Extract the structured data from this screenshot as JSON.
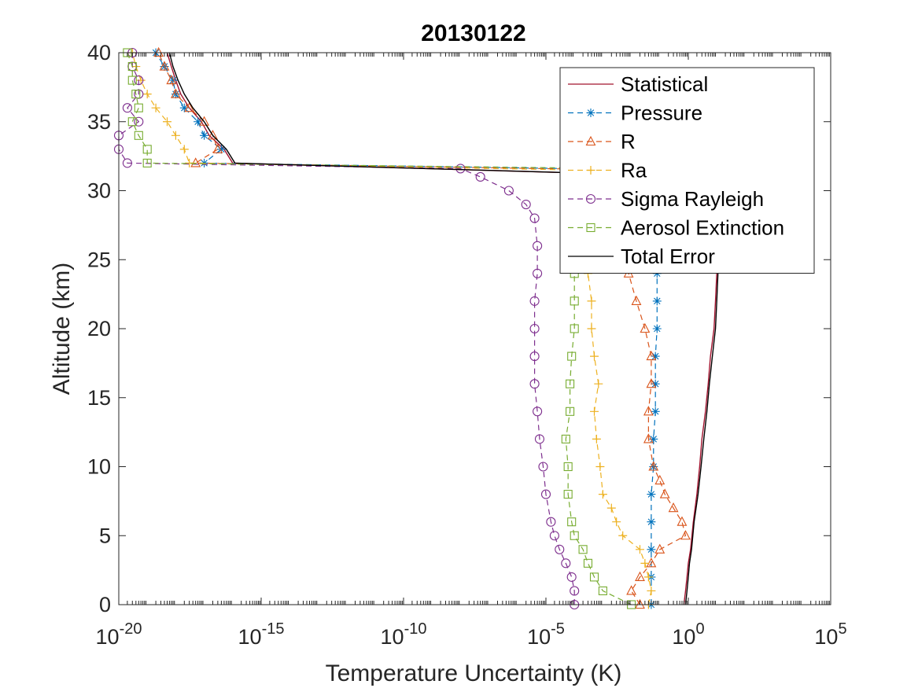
{
  "chart_data": {
    "type": "line",
    "title": "20130122",
    "xlabel": "Temperature Uncertainty (K)",
    "ylabel": "Altitude (km)",
    "xscale": "log",
    "xlim": [
      1e-20,
      100000.0
    ],
    "ylim": [
      0,
      40
    ],
    "grid": false,
    "legend_position": "top-right",
    "x_ticks": [
      {
        "base": "10",
        "exp": "-20",
        "value": 1e-20
      },
      {
        "base": "10",
        "exp": "-15",
        "value": 1e-15
      },
      {
        "base": "10",
        "exp": "-10",
        "value": 1e-10
      },
      {
        "base": "10",
        "exp": "-5",
        "value": 1e-05
      },
      {
        "base": "10",
        "exp": "0",
        "value": 1
      },
      {
        "base": "10",
        "exp": "5",
        "value": 100000.0
      }
    ],
    "y_ticks": [
      "0",
      "5",
      "10",
      "15",
      "20",
      "25",
      "30",
      "35",
      "40"
    ],
    "series": [
      {
        "name": "Statistical",
        "color": "#A2142F",
        "line": "solid",
        "marker": "none",
        "points": [
          [
            0.7,
            0
          ],
          [
            0.8,
            1
          ],
          [
            0.9,
            2
          ],
          [
            1.0,
            3
          ],
          [
            1.2,
            4
          ],
          [
            1.5,
            6
          ],
          [
            2,
            8
          ],
          [
            2.5,
            10
          ],
          [
            3,
            12
          ],
          [
            4,
            14
          ],
          [
            5,
            16
          ],
          [
            6,
            18
          ],
          [
            8,
            20
          ],
          [
            9,
            22
          ],
          [
            10,
            24
          ],
          [
            10,
            26
          ],
          [
            9,
            28
          ],
          [
            9,
            30
          ],
          [
            8,
            31
          ],
          [
            1e-16,
            32
          ],
          [
            5e-17,
            33
          ],
          [
            1.5e-17,
            34
          ],
          [
            8e-18,
            35
          ],
          [
            3e-18,
            36
          ],
          [
            1.5e-18,
            37
          ],
          [
            1e-18,
            38
          ],
          [
            7e-19,
            39
          ],
          [
            5e-19,
            40
          ]
        ]
      },
      {
        "name": "Pressure",
        "color": "#0072BD",
        "line": "dashed",
        "marker": "asterisk",
        "points": [
          [
            0.05,
            0
          ],
          [
            0.05,
            2
          ],
          [
            0.05,
            4
          ],
          [
            0.05,
            6
          ],
          [
            0.05,
            8
          ],
          [
            0.06,
            10
          ],
          [
            0.06,
            12
          ],
          [
            0.07,
            14
          ],
          [
            0.07,
            16
          ],
          [
            0.07,
            18
          ],
          [
            0.08,
            20
          ],
          [
            0.08,
            22
          ],
          [
            0.08,
            24
          ],
          [
            0.09,
            26
          ],
          [
            0.09,
            28
          ],
          [
            0.1,
            30
          ],
          [
            0.1,
            31.5
          ],
          [
            1e-17,
            32
          ],
          [
            4e-17,
            33
          ],
          [
            1e-17,
            34
          ],
          [
            6e-18,
            35
          ],
          [
            2e-18,
            36
          ],
          [
            1e-18,
            37
          ],
          [
            8e-19,
            38
          ],
          [
            4e-19,
            39
          ],
          [
            2e-19,
            40
          ]
        ]
      },
      {
        "name": "R",
        "color": "#D95319",
        "line": "dashed",
        "marker": "triangle",
        "points": [
          [
            0.02,
            0
          ],
          [
            0.01,
            1
          ],
          [
            0.02,
            2
          ],
          [
            0.05,
            3
          ],
          [
            0.1,
            4
          ],
          [
            0.8,
            5
          ],
          [
            0.6,
            6
          ],
          [
            0.3,
            7
          ],
          [
            0.15,
            8
          ],
          [
            0.1,
            9
          ],
          [
            0.06,
            10
          ],
          [
            0.04,
            12
          ],
          [
            0.04,
            14
          ],
          [
            0.05,
            16
          ],
          [
            0.05,
            18
          ],
          [
            0.03,
            20
          ],
          [
            0.015,
            22
          ],
          [
            0.008,
            24
          ],
          [
            0.005,
            26
          ],
          [
            0.004,
            28
          ],
          [
            0.003,
            30
          ],
          [
            0.01,
            31.5
          ],
          [
            5e-18,
            32
          ],
          [
            3e-17,
            33
          ],
          [
            2e-17,
            34
          ],
          [
            1e-17,
            35
          ],
          [
            3e-18,
            36
          ],
          [
            1e-18,
            37
          ],
          [
            7e-19,
            38
          ],
          [
            4e-19,
            39
          ],
          [
            2.5e-19,
            40
          ]
        ]
      },
      {
        "name": "Ra",
        "color": "#EDB120",
        "line": "dashed",
        "marker": "plus",
        "points": [
          [
            0.04,
            0
          ],
          [
            0.05,
            1
          ],
          [
            0.04,
            2
          ],
          [
            0.03,
            3
          ],
          [
            0.02,
            4
          ],
          [
            0.005,
            5
          ],
          [
            0.003,
            6
          ],
          [
            0.002,
            7
          ],
          [
            0.001,
            8
          ],
          [
            0.0008,
            10
          ],
          [
            0.0006,
            12
          ],
          [
            0.0005,
            14
          ],
          [
            0.0007,
            16
          ],
          [
            0.0005,
            18
          ],
          [
            0.0004,
            20
          ],
          [
            0.0004,
            22
          ],
          [
            0.0003,
            24
          ],
          [
            0.0003,
            26
          ],
          [
            0.0002,
            28
          ],
          [
            0.0001,
            30
          ],
          [
            0.0001,
            31.5
          ],
          [
            3e-18,
            32
          ],
          [
            2e-18,
            33
          ],
          [
            1e-18,
            34
          ],
          [
            5e-19,
            35
          ],
          [
            2e-19,
            36
          ],
          [
            1e-19,
            37
          ],
          [
            6e-20,
            38
          ],
          [
            4e-20,
            39
          ],
          [
            3e-20,
            40
          ]
        ]
      },
      {
        "name": "Sigma Rayleigh",
        "color": "#7E2F8E",
        "line": "dashed",
        "marker": "circle",
        "points": [
          [
            0.0001,
            0
          ],
          [
            0.0001,
            1
          ],
          [
            8e-05,
            2
          ],
          [
            5e-05,
            3
          ],
          [
            3e-05,
            4
          ],
          [
            2e-05,
            5
          ],
          [
            1.5e-05,
            6
          ],
          [
            1e-05,
            8
          ],
          [
            8e-06,
            10
          ],
          [
            6e-06,
            12
          ],
          [
            5e-06,
            14
          ],
          [
            4e-06,
            16
          ],
          [
            4e-06,
            18
          ],
          [
            4e-06,
            20
          ],
          [
            4e-06,
            22
          ],
          [
            5e-06,
            24
          ],
          [
            5e-06,
            26
          ],
          [
            4e-06,
            28
          ],
          [
            2e-06,
            29
          ],
          [
            5e-07,
            30
          ],
          [
            5e-08,
            31
          ],
          [
            1e-08,
            31.6
          ],
          [
            2e-20,
            32
          ],
          [
            1e-20,
            33
          ],
          [
            1e-20,
            34
          ],
          [
            5e-20,
            35
          ],
          [
            2e-20,
            36
          ],
          [
            5e-20,
            37
          ],
          [
            5e-20,
            38
          ],
          [
            3e-20,
            39
          ],
          [
            3e-20,
            40
          ]
        ]
      },
      {
        "name": "Aerosol Extinction",
        "color": "#77AC30",
        "line": "dashed",
        "marker": "square",
        "points": [
          [
            0.01,
            0
          ],
          [
            0.001,
            1
          ],
          [
            0.0005,
            2
          ],
          [
            0.0003,
            3
          ],
          [
            0.0002,
            4
          ],
          [
            0.0001,
            5
          ],
          [
            8e-05,
            6
          ],
          [
            6e-05,
            8
          ],
          [
            6e-05,
            10
          ],
          [
            5e-05,
            12
          ],
          [
            7e-05,
            14
          ],
          [
            7e-05,
            16
          ],
          [
            8e-05,
            18
          ],
          [
            0.0001,
            20
          ],
          [
            0.0001,
            22
          ],
          [
            0.0001,
            24
          ],
          [
            0.0001,
            26
          ],
          [
            0.0003,
            28
          ],
          [
            0.0005,
            30
          ],
          [
            0.001,
            31
          ],
          [
            0.01,
            31.6
          ],
          [
            1e-19,
            32
          ],
          [
            1e-19,
            33
          ],
          [
            5e-20,
            34
          ],
          [
            3e-20,
            35
          ],
          [
            5e-20,
            36
          ],
          [
            4e-20,
            37
          ],
          [
            3e-20,
            38
          ],
          [
            3e-20,
            39
          ],
          [
            2e-20,
            40
          ]
        ]
      },
      {
        "name": "Total Error",
        "color": "#000000",
        "line": "solid",
        "marker": "none",
        "points": [
          [
            0.8,
            0
          ],
          [
            0.9,
            1
          ],
          [
            1.0,
            2
          ],
          [
            1.1,
            3
          ],
          [
            1.3,
            4
          ],
          [
            1.6,
            6
          ],
          [
            2.2,
            8
          ],
          [
            2.8,
            10
          ],
          [
            3.5,
            12
          ],
          [
            4.5,
            14
          ],
          [
            5.5,
            16
          ],
          [
            7,
            18
          ],
          [
            9,
            20
          ],
          [
            10,
            22
          ],
          [
            11,
            24
          ],
          [
            11,
            26
          ],
          [
            10,
            28
          ],
          [
            10,
            30
          ],
          [
            9,
            31
          ],
          [
            1.2e-16,
            32
          ],
          [
            6e-17,
            33
          ],
          [
            2e-17,
            34
          ],
          [
            1e-17,
            35
          ],
          [
            4e-18,
            36
          ],
          [
            2e-18,
            37
          ],
          [
            1.2e-18,
            38
          ],
          [
            8e-19,
            39
          ],
          [
            6e-19,
            40
          ]
        ]
      }
    ]
  }
}
